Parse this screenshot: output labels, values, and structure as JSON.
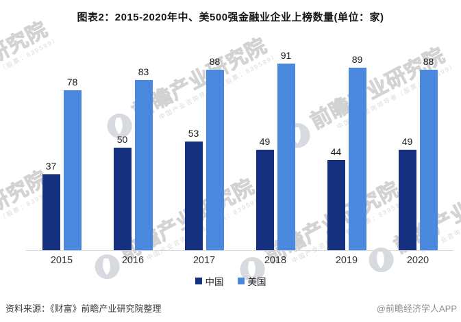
{
  "title": "图表2：2015-2020年中、美500强金融业企业上榜数量(单位：家)",
  "chart_data": {
    "type": "bar",
    "categories": [
      "2015",
      "2016",
      "2017",
      "2018",
      "2019",
      "2020"
    ],
    "series": [
      {
        "name": "中国",
        "key": "china",
        "color": "#14307E",
        "values": [
          37,
          50,
          53,
          49,
          44,
          49
        ]
      },
      {
        "name": "美国",
        "key": "us",
        "color": "#4A89DD",
        "values": [
          78,
          83,
          88,
          91,
          89,
          88
        ]
      }
    ],
    "title": "图表2：2015-2020年中、美500强金融业企业上榜数量(单位：家)",
    "xlabel": "",
    "ylabel": "",
    "ylim": [
      0,
      100
    ],
    "grid": false,
    "legend_position": "bottom",
    "value_labels": true
  },
  "legend": {
    "items": [
      {
        "label": "中国",
        "color": "#14307E"
      },
      {
        "label": "美国",
        "color": "#4A89DD"
      }
    ]
  },
  "footer": {
    "source": "资料来源：《财富》前瞻产业研究院整理",
    "credit": "@前瞻经济学人APP"
  },
  "watermark": {
    "logo_icon": "qianzhan-logo-icon",
    "text": "前瞻产业研究院",
    "subtext": "中国产业咨询领导者（股票：839599）"
  },
  "colors": {
    "china_bar": "#14307E",
    "us_bar": "#4A89DD",
    "axis_line": "#D6D6D6",
    "watermark_gray": "#DCDCDC"
  }
}
